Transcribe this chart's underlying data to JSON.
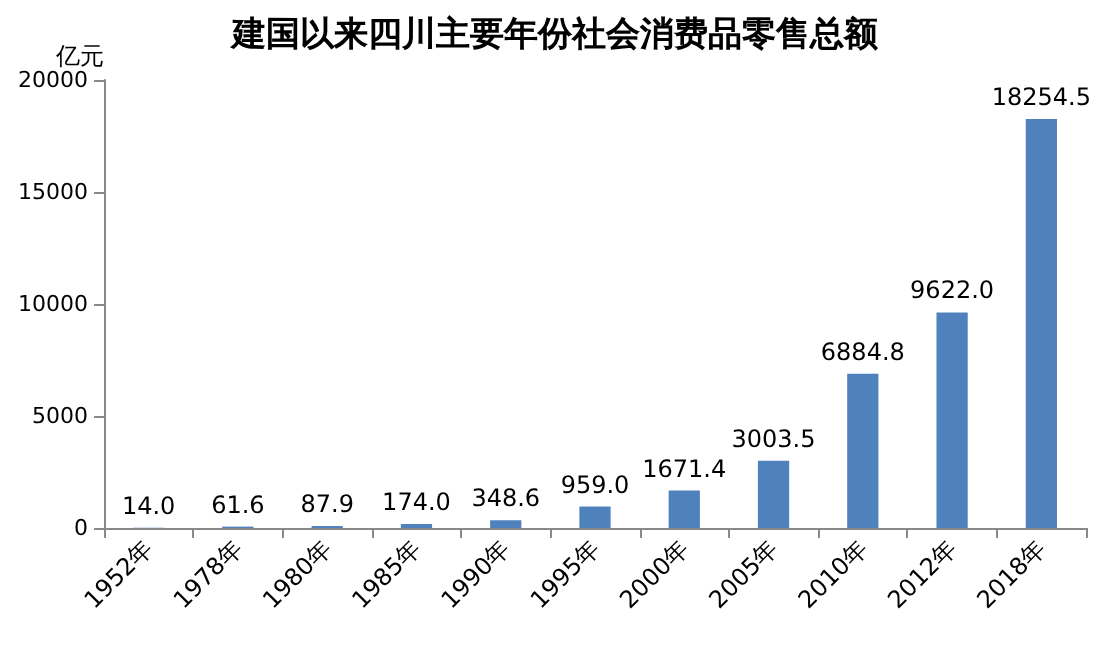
{
  "chart_data": {
    "type": "bar",
    "title": "建国以来四川主要年份社会消费品零售总额",
    "ylabel": "亿元",
    "categories": [
      "1952年",
      "1978年",
      "1980年",
      "1985年",
      "1990年",
      "1995年",
      "2000年",
      "2005年",
      "2010年",
      "2012年",
      "2018年"
    ],
    "values": [
      14.0,
      61.6,
      87.9,
      174.0,
      348.6,
      959.0,
      1671.4,
      3003.5,
      6884.8,
      9622.0,
      18254.5
    ],
    "value_labels": [
      "14.0",
      "61.6",
      "87.9",
      "174.0",
      "348.6",
      "959.0",
      "1671.4",
      "3003.5",
      "6884.8",
      "9622.0",
      "18254.5"
    ],
    "color": "#4f81bd",
    "ylim": [
      0,
      20000
    ],
    "yticks": [
      0,
      5000,
      10000,
      15000,
      20000
    ]
  }
}
